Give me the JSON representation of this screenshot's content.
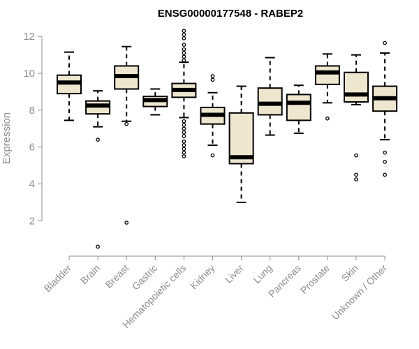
{
  "chart_data": {
    "type": "boxplot",
    "title": "ENSG00000177548 - RABEP2",
    "ylabel": "Expression",
    "xlabel": "",
    "ylim": [
      0.5,
      12.5
    ],
    "yticks": [
      2,
      4,
      6,
      8,
      10,
      12
    ],
    "categories": [
      "Bladder",
      "Brain",
      "Breast",
      "Gastric",
      "Hematopoietic cells",
      "Kidney",
      "Liver",
      "Lung",
      "Pancreas",
      "Prostate",
      "Skin",
      "Unknown / Other"
    ],
    "boxes": [
      {
        "category": "Bladder",
        "min": 7.45,
        "q1": 8.9,
        "median": 9.5,
        "q3": 9.9,
        "max": 11.15,
        "outliers": []
      },
      {
        "category": "Brain",
        "min": 7.1,
        "q1": 7.8,
        "median": 8.25,
        "q3": 8.5,
        "max": 9.05,
        "outliers": [
          6.4,
          0.6
        ]
      },
      {
        "category": "Breast",
        "min": 7.4,
        "q1": 9.15,
        "median": 9.85,
        "q3": 10.4,
        "max": 11.45,
        "outliers": [
          7.25,
          1.9
        ]
      },
      {
        "category": "Gastric",
        "min": 7.75,
        "q1": 8.2,
        "median": 8.55,
        "q3": 8.75,
        "max": 9.15,
        "outliers": []
      },
      {
        "category": "Hematopoietic cells",
        "min": 7.6,
        "q1": 8.7,
        "median": 9.1,
        "q3": 9.45,
        "max": 10.6,
        "outliers": [
          12.3,
          12.1,
          11.9,
          11.55,
          11.3,
          11.1,
          10.9,
          10.7,
          7.4,
          7.2,
          7.0,
          6.8,
          6.6,
          6.3,
          6.1,
          5.9,
          5.7,
          5.5
        ]
      },
      {
        "category": "Kidney",
        "min": 6.1,
        "q1": 7.25,
        "median": 7.75,
        "q3": 8.15,
        "max": 8.95,
        "outliers": [
          9.85,
          9.65,
          5.55
        ]
      },
      {
        "category": "Liver",
        "min": 3.0,
        "q1": 5.1,
        "median": 5.45,
        "q3": 7.85,
        "max": 9.3,
        "outliers": []
      },
      {
        "category": "Lung",
        "min": 6.65,
        "q1": 7.75,
        "median": 8.35,
        "q3": 9.2,
        "max": 10.85,
        "outliers": []
      },
      {
        "category": "Pancreas",
        "min": 6.75,
        "q1": 7.45,
        "median": 8.4,
        "q3": 8.85,
        "max": 9.35,
        "outliers": []
      },
      {
        "category": "Prostate",
        "min": 8.4,
        "q1": 9.4,
        "median": 10.05,
        "q3": 10.4,
        "max": 11.05,
        "outliers": [
          7.55
        ]
      },
      {
        "category": "Skin",
        "min": 8.3,
        "q1": 8.45,
        "median": 8.85,
        "q3": 10.05,
        "max": 11.0,
        "outliers": [
          5.55,
          4.5,
          4.25
        ]
      },
      {
        "category": "Unknown / Other",
        "min": 6.4,
        "q1": 7.95,
        "median": 8.65,
        "q3": 9.3,
        "max": 11.1,
        "outliers": [
          11.65,
          5.7,
          5.2,
          4.5
        ]
      }
    ],
    "colors": {
      "box_fill": "#efe6cf",
      "stroke": "#000000",
      "axis": "#8c8c8c"
    },
    "grid": false,
    "legend": "none"
  }
}
